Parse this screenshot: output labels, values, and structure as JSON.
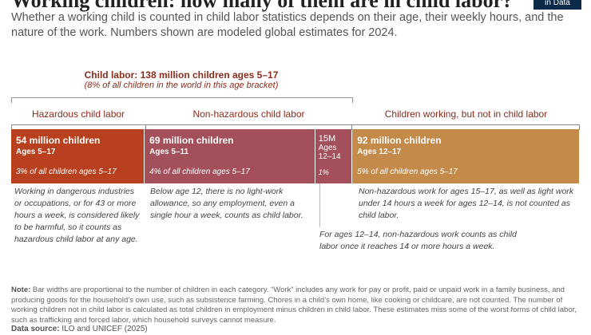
{
  "header": {
    "title": "Working children: how many of them are in child labor?",
    "subtitle": "Whether a working child is counted in child labor statistics depends on their age, their weekly hours, and the nature of the work. Numbers shown are modeled global estimates for 2024.",
    "logo_text": "in Data"
  },
  "summary": {
    "label": "Child labor: 138 million children ages 5–17",
    "sublabel": "(8% of all children in the world in this age bracket)"
  },
  "categories": {
    "hazardous": "Hazardous child labor",
    "nonhazardous": "Non-hazardous child labor",
    "not_labor": "Children working, but not in child labor"
  },
  "chart_data": {
    "type": "bar",
    "orientation": "horizontal-stacked",
    "unit": "million children",
    "segments": [
      {
        "value_label": "54 million children",
        "value": 54,
        "ages": "Ages 5–17",
        "share": "3% of all children ages 5–17",
        "color": "#b8401e"
      },
      {
        "value_label": "69 million children",
        "value": 69,
        "ages": "Ages 5–11",
        "share": "4% of all children ages 5–17",
        "color": "#a3505a"
      },
      {
        "value_label": "15M",
        "value": 15,
        "ages": "Ages 12–14",
        "share": "1%",
        "color": "#a3505a"
      },
      {
        "value_label": "92 million children",
        "value": 92,
        "ages": "Ages 12–17",
        "share": "5% of all children ages 5–17",
        "color": "#c48a4a"
      }
    ]
  },
  "notes": {
    "hazardous": "Working in dangerous industries or occupations, or for 43 or more hours a week, is considered likely to be harmful, so it counts as hazardous child labor at any age.",
    "under12": "Below age 12, there is no light-work allowance, so any employment, even a single hour a week, counts as child labor.",
    "age12_14": "For ages 12–14, non-hazardous work counts as child labor once it reaches 14 or more hours a week.",
    "not_labor": "Non-hazardous work for ages 15–17, as well as light work under 14 hours a week for ages 12–14, is not counted as child labor."
  },
  "footer": {
    "note_label": "Note:",
    "note_text": "Bar widths are proportional to the number of children in each category. “Work” includes any work for pay or profit, paid or unpaid work in a family business, and producing goods for the household’s own use, such as subsistence farming. Chores in a child’s own home, like cooking or childcare, are not counted. The number of working children not in child labor is calculated as total children in employment minus children in child labor.  These estimates miss some of the worst forms of child labor, such as trafficking and forced labor, which household surveys cannot measure.",
    "source_label": "Data source:",
    "source_text": "ILO and UNICEF (2025)"
  }
}
